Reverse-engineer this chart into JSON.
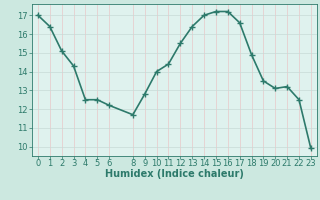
{
  "x": [
    0,
    1,
    2,
    3,
    4,
    5,
    6,
    8,
    9,
    10,
    11,
    12,
    13,
    14,
    15,
    16,
    17,
    18,
    19,
    20,
    21,
    22,
    23
  ],
  "y": [
    17.0,
    16.4,
    15.1,
    14.3,
    12.5,
    12.5,
    12.2,
    11.7,
    12.8,
    14.0,
    14.4,
    15.5,
    16.4,
    17.0,
    17.2,
    17.2,
    16.6,
    14.9,
    13.5,
    13.1,
    13.2,
    12.5,
    9.9
  ],
  "xlabel": "Humidex (Indice chaleur)",
  "ylim": [
    9.5,
    17.6
  ],
  "xlim": [
    -0.5,
    23.5
  ],
  "yticks": [
    10,
    11,
    12,
    13,
    14,
    15,
    16,
    17
  ],
  "xticks": [
    0,
    1,
    2,
    3,
    4,
    5,
    6,
    8,
    9,
    10,
    11,
    12,
    13,
    14,
    15,
    16,
    17,
    18,
    19,
    20,
    21,
    22,
    23
  ],
  "line_color": "#2d7a6b",
  "marker_color": "#2d7a6b",
  "bg_color": "#cce8e0",
  "plot_bg_color": "#dff2ee",
  "grid_color_h": "#c8dbd7",
  "grid_color_v": "#e8c8c8",
  "axis_color": "#2d7a6b",
  "tick_color": "#2d7a6b",
  "label_color": "#2d7a6b",
  "xlabel_fontsize": 7,
  "tick_fontsize": 6,
  "marker_size": 2.5,
  "line_width": 1.2
}
